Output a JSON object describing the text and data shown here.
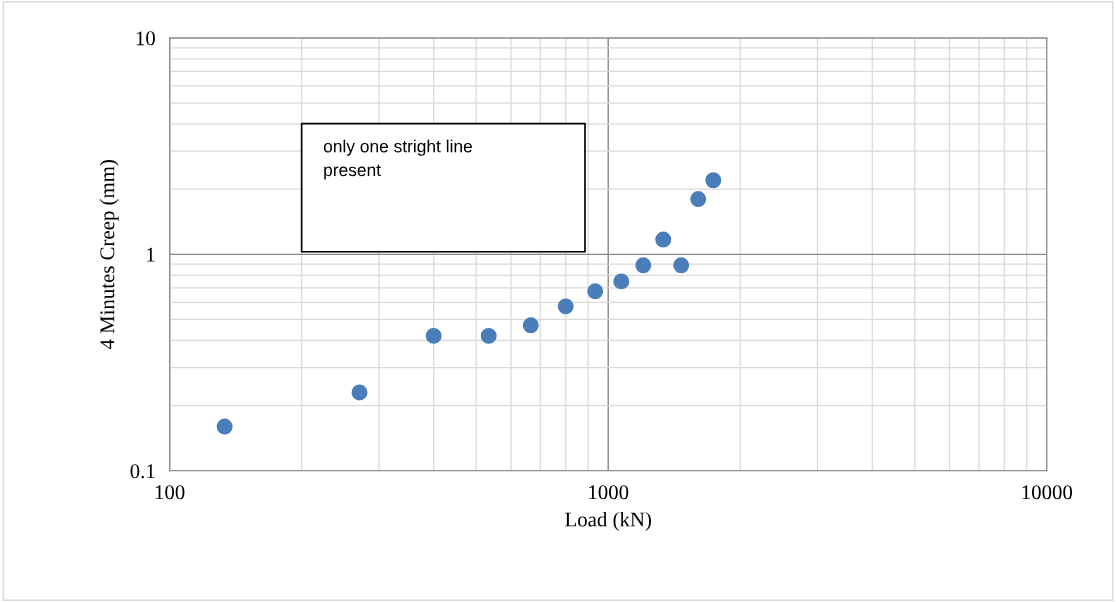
{
  "chart_data": {
    "type": "scatter",
    "xlabel": "Load (kN)",
    "ylabel": "4 Minutes Creep (mm)",
    "log": "xy",
    "xlim": [
      100,
      10000
    ],
    "ylim": [
      0.1,
      10
    ],
    "xticks": [
      100,
      1000,
      10000
    ],
    "yticks": [
      0.1,
      1,
      10
    ],
    "grid": true,
    "marker": "circle",
    "series": [
      {
        "color": "#4a7ebb",
        "x": [
          133.5,
          271,
          400,
          534,
          666,
          800,
          934,
          1071,
          1202,
          1335,
          1467,
          1604,
          1736
        ],
        "values": [
          0.16,
          0.23,
          0.42,
          0.42,
          0.47,
          0.575,
          0.675,
          0.75,
          0.89,
          1.17,
          0.89,
          1.8,
          2.2
        ]
      }
    ],
    "annotations": [
      "only one stright line\npresent"
    ]
  }
}
